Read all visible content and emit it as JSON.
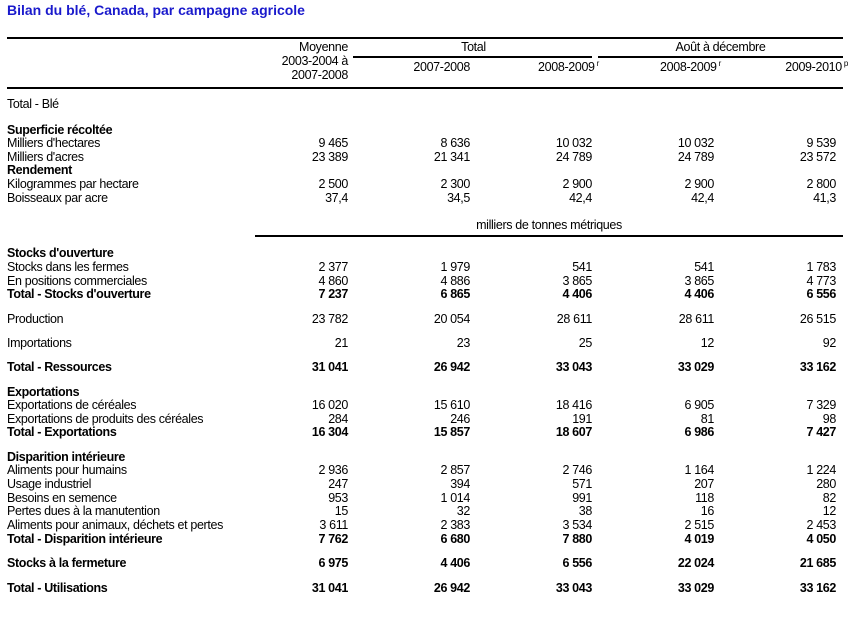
{
  "title": "Bilan du blé, Canada, par campagne agricole",
  "header": {
    "avg_line1": "Moyenne",
    "avg_line2": "2003-2004 à",
    "avg_line3": "2007-2008",
    "group_total": "Total",
    "group_aug_dec": "Août à décembre",
    "col2": "2007-2008",
    "col3": "2008-2009",
    "col3_note": "r",
    "col4": "2008-2009",
    "col4_note": "r",
    "col5": "2009-2010",
    "col5_note": "p"
  },
  "unit_label": "milliers de tonnes métriques",
  "rows": [
    {
      "label": "Total - Blé",
      "style": "normal",
      "values": []
    },
    {
      "label": "Superficie récoltée",
      "style": "section",
      "values": []
    },
    {
      "label": "Milliers d'hectares",
      "style": "normal",
      "values": [
        "9 465",
        "8 636",
        "10 032",
        "10 032",
        "9 539"
      ]
    },
    {
      "label": "Milliers d'acres",
      "style": "normal",
      "values": [
        "23 389",
        "21 341",
        "24 789",
        "24 789",
        "23 572"
      ]
    },
    {
      "label": "Rendement",
      "style": "section",
      "values": []
    },
    {
      "label": "Kilogrammes par hectare",
      "style": "normal",
      "values": [
        "2 500",
        "2 300",
        "2 900",
        "2 900",
        "2 800"
      ]
    },
    {
      "label": "Boisseaux par acre",
      "style": "normal",
      "values": [
        "37,4",
        "34,5",
        "42,4",
        "42,4",
        "41,3"
      ]
    },
    {
      "label": "Stocks d'ouverture",
      "style": "section",
      "values": []
    },
    {
      "label": "Stocks dans les fermes",
      "style": "normal",
      "values": [
        "2 377",
        "1 979",
        "541",
        "541",
        "1 783"
      ]
    },
    {
      "label": "En positions commerciales",
      "style": "normal",
      "values": [
        "4 860",
        "4 886",
        "3 865",
        "3 865",
        "4 773"
      ]
    },
    {
      "label": "Total - Stocks d'ouverture",
      "style": "total",
      "values": [
        "7 237",
        "6 865",
        "4 406",
        "4 406",
        "6 556"
      ]
    },
    {
      "label": "Production",
      "style": "normal",
      "values": [
        "23 782",
        "20 054",
        "28 611",
        "28 611",
        "26 515"
      ]
    },
    {
      "label": "Importations",
      "style": "normal",
      "values": [
        "21",
        "23",
        "25",
        "12",
        "92"
      ]
    },
    {
      "label": "Total - Ressources",
      "style": "total",
      "values": [
        "31 041",
        "26 942",
        "33 043",
        "33 029",
        "33 162"
      ]
    },
    {
      "label": "Exportations",
      "style": "section",
      "values": []
    },
    {
      "label": "Exportations de céréales",
      "style": "normal",
      "values": [
        "16 020",
        "15 610",
        "18 416",
        "6 905",
        "7 329"
      ]
    },
    {
      "label": "Exportations de produits des céréales",
      "style": "normal",
      "values": [
        "284",
        "246",
        "191",
        "81",
        "98"
      ]
    },
    {
      "label": "Total - Exportations",
      "style": "total",
      "values": [
        "16 304",
        "15 857",
        "18 607",
        "6 986",
        "7 427"
      ]
    },
    {
      "label": "Disparition intérieure",
      "style": "section",
      "values": []
    },
    {
      "label": "Aliments pour humains",
      "style": "normal",
      "values": [
        "2 936",
        "2 857",
        "2 746",
        "1 164",
        "1 224"
      ]
    },
    {
      "label": "Usage industriel",
      "style": "normal",
      "values": [
        "247",
        "394",
        "571",
        "207",
        "280"
      ]
    },
    {
      "label": "Besoins en semence",
      "style": "normal",
      "values": [
        "953",
        "1 014",
        "991",
        "118",
        "82"
      ]
    },
    {
      "label": "Pertes dues à la manutention",
      "style": "normal",
      "values": [
        "15",
        "32",
        "38",
        "16",
        "12"
      ]
    },
    {
      "label": "Aliments pour animaux, déchets et pertes",
      "style": "normal",
      "values": [
        "3 611",
        "2 383",
        "3 534",
        "2 515",
        "2 453"
      ]
    },
    {
      "label": "Total - Disparition intérieure",
      "style": "total",
      "values": [
        "7 762",
        "6 680",
        "7 880",
        "4 019",
        "4 050"
      ]
    },
    {
      "label": "Stocks à la fermeture",
      "style": "total",
      "values": [
        "6 975",
        "4 406",
        "6 556",
        "22 024",
        "21 685"
      ]
    },
    {
      "label": "Total - Utilisations",
      "style": "total",
      "values": [
        "31 041",
        "26 942",
        "33 043",
        "33 029",
        "33 162"
      ]
    }
  ]
}
